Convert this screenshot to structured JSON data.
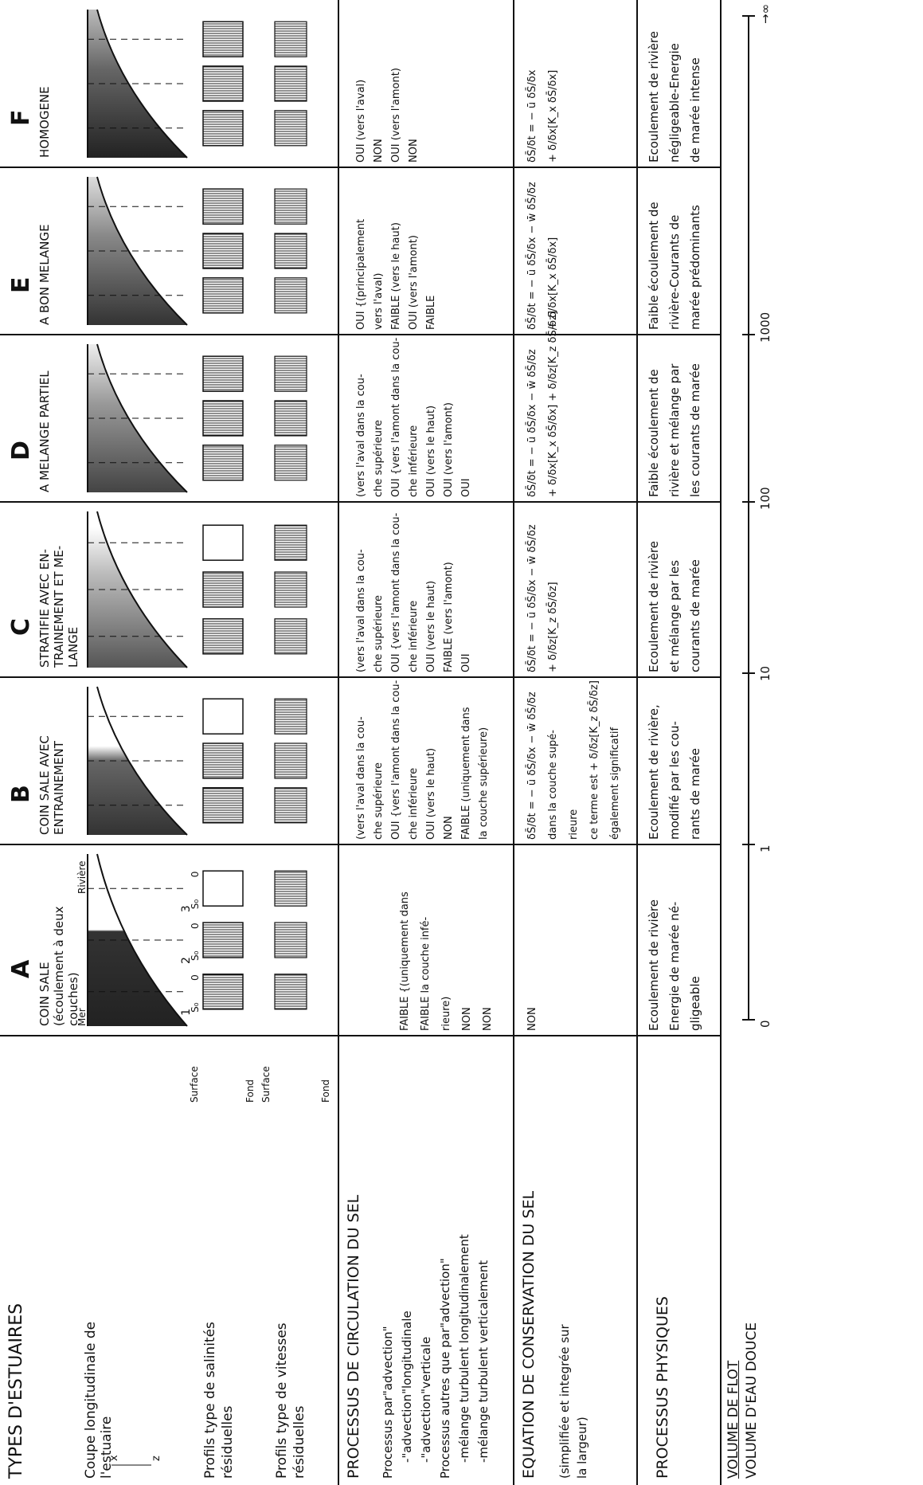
{
  "header": {
    "title": "TYPES D'ESTUAIRES"
  },
  "row_labels": {
    "section": "Coupe longitudinale de",
    "section2": "l'estuaire",
    "axis_x": "x",
    "axis_z": "z",
    "salinity": "Profils type de salinités",
    "salinity2": "résiduelles",
    "velocity": "Profils type de vitesses",
    "velocity2": "résiduelles",
    "surface": "Surface",
    "fond": "Fond"
  },
  "circulation": {
    "title": "PROCESSUS DE CIRCULATION DU SEL",
    "lines": [
      "Processus par\"advection\"",
      "-\"advection\"longitudinale",
      "-\"advection\"verticale",
      "Processus autres que par\"advection\"",
      "-mélange turbulent longitudinalement",
      "-mélange turbulent verticalement"
    ]
  },
  "equation": {
    "title": "EQUATION DE CONSERVATION DU SEL",
    "lines": [
      "(simplifiée et integrée sur",
      "la largeur)"
    ]
  },
  "physical": {
    "title": "PROCESSUS PHYSIQUES"
  },
  "ratio": {
    "numerator": "VOLUME DE FLOT",
    "denominator": "VOLUME D'EAU DOUCE",
    "ticks": [
      "0",
      "1",
      "10",
      "100",
      "1000",
      "→∞"
    ]
  },
  "columns": [
    {
      "letter": "A",
      "name": [
        "COIN SALE",
        "(écoulement à deux",
        "couches)"
      ],
      "labels": {
        "sea": "Mer",
        "river": "Rivière",
        "stations": [
          "1",
          "2",
          "3"
        ],
        "s0": "S₀",
        "zero": "0"
      },
      "circulation": [
        "FAIBLE {(uniquement dans",
        "FAIBLE   la couche infé-",
        "             rieure)",
        "NON",
        "NON"
      ],
      "equation": [
        "NON"
      ],
      "physical": [
        "Ecoulement de rivière",
        "Energie de marée né-",
        "gligeable"
      ]
    },
    {
      "letter": "B",
      "name": [
        "COIN SALE AVEC",
        "ENTRAINEMENT"
      ],
      "circulation": [
        "(vers l'aval dans la cou-",
        "  che supérieure",
        "OUI {vers l'amont dans la cou-",
        "  che inférieure",
        "OUI (vers le haut)",
        "NON",
        "FAIBLE (uniquement dans",
        "  la couche supérieure)"
      ],
      "equation": [
        "δS̄/δt = − ū δS̄/δx − w̄ δS̄/δz",
        "dans la couche supé-",
        "rieure",
        "ce terme est + δ/δz[K_z δS̄/δz]",
        "également significatif"
      ],
      "physical": [
        "Ecoulement de rivière,",
        "modifié par les cou-",
        "rants de marée"
      ]
    },
    {
      "letter": "C",
      "name": [
        "STRATIFIE AVEC EN-",
        "TRAINEMENT ET ME-",
        "LANGE"
      ],
      "circulation": [
        "(vers l'aval dans la cou-",
        "  che supérieure",
        "OUI {vers l'amont dans la cou-",
        "  che inférieure",
        "OUI (vers le haut)",
        "FAIBLE (vers l'amont)",
        "OUI"
      ],
      "equation": [
        "δS̄/δt = − ū δS̄/δx − w̄ δS̄/δz",
        "+ δ/δz[K_z δS̄/δz]"
      ],
      "physical": [
        "Ecoulement de rivière",
        "et mélange par les",
        "courants de marée"
      ]
    },
    {
      "letter": "D",
      "name": [
        "A MELANGE PARTIEL"
      ],
      "circulation": [
        "(vers l'aval dans la cou-",
        "  che supérieure",
        "OUI {vers l'amont dans la cou-",
        "  che inférieure",
        "OUI (vers le haut)",
        "OUI (vers l'amont)",
        "OUI"
      ],
      "equation": [
        "δS̄/δt = − ū δS̄/δx − w̄ δS̄/δz",
        "+ δ/δx[K_x δS̄/δx] + δ/δz[K_z δS̄/δz]"
      ],
      "physical": [
        "Faible écoulement de",
        "rivière et mélange par",
        "les courants de marée"
      ]
    },
    {
      "letter": "E",
      "name": [
        "A BON MELANGE"
      ],
      "circulation": [
        "OUI {(principalement",
        "      vers l'aval)",
        "FAIBLE (vers le haut)",
        "OUI (vers l'amont)",
        "FAIBLE"
      ],
      "equation": [
        "δS̄/δt = − ū δS̄/δx − w̄ δS̄/δz",
        "+ δ/δx[K_x δS̄/δx]"
      ],
      "physical": [
        "Faible écoulement de",
        "rivière-Courants de",
        "marée prédominants"
      ]
    },
    {
      "letter": "F",
      "name": [
        "HOMOGENE"
      ],
      "circulation": [
        "OUI (vers l'aval)",
        "NON",
        "OUI (vers l'amont)",
        "NON"
      ],
      "equation": [
        "δS̄/δt = − ū δS̄/δx",
        "+ δ/δx[K_x δS̄/δx]"
      ],
      "physical": [
        "Ecoulement de rivière",
        "négligeable-Energie",
        "de marée intense"
      ]
    }
  ]
}
